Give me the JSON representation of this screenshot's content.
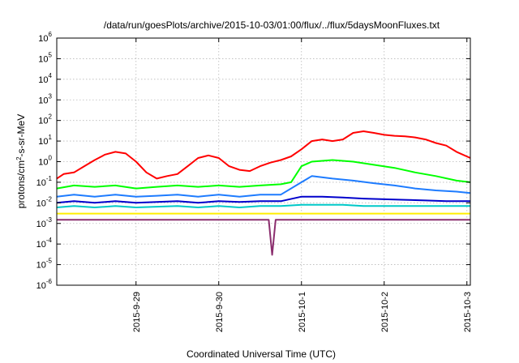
{
  "chart_data": {
    "type": "line",
    "title": "/data/run/goesPlots/archive/2015-10-03/01:00/flux/../flux/5daysMoonFluxes.txt",
    "xlabel": "Coordinated Universal Time (UTC)",
    "ylabel": "protons/cm2-s-sr-MeV",
    "ylabel_parts": {
      "pre": "protons/cm",
      "sup": "2",
      "post": "-s-sr-MeV"
    },
    "y_scale": "log",
    "ylim": [
      1e-06,
      1000000.0
    ],
    "y_ticks": [
      {
        "value": 1e-06,
        "base": "10",
        "exp": "-6"
      },
      {
        "value": 1e-05,
        "base": "10",
        "exp": "-5"
      },
      {
        "value": 0.0001,
        "base": "10",
        "exp": "-4"
      },
      {
        "value": 0.001,
        "base": "10",
        "exp": "-3"
      },
      {
        "value": 0.01,
        "base": "10",
        "exp": "-2"
      },
      {
        "value": 0.1,
        "base": "10",
        "exp": "-1"
      },
      {
        "value": 1,
        "base": "10",
        "exp": "0"
      },
      {
        "value": 10.0,
        "base": "10",
        "exp": "1"
      },
      {
        "value": 100.0,
        "base": "10",
        "exp": "2"
      },
      {
        "value": 1000.0,
        "base": "10",
        "exp": "3"
      },
      {
        "value": 10000.0,
        "base": "10",
        "exp": "4"
      },
      {
        "value": 100000.0,
        "base": "10",
        "exp": "5"
      },
      {
        "value": 1000000.0,
        "base": "10",
        "exp": "6"
      }
    ],
    "x_range": [
      "2015-09-28T01:00",
      "2015-10-03T01:00"
    ],
    "x_ticks": [
      {
        "value": "2015-09-29T00:00",
        "label": "2015-9-29"
      },
      {
        "value": "2015-09-30T00:00",
        "label": "2015-9-30"
      },
      {
        "value": "2015-10-01T00:00",
        "label": "2015-10-1"
      },
      {
        "value": "2015-10-02T00:00",
        "label": "2015-10-2"
      },
      {
        "value": "2015-10-03T00:00",
        "label": "2015-10-3"
      }
    ],
    "grid": true,
    "series": [
      {
        "color": "#ff0000",
        "points": [
          [
            "2015-09-28T01:00",
            0.15
          ],
          [
            "2015-09-28T03:00",
            0.25
          ],
          [
            "2015-09-28T06:00",
            0.3
          ],
          [
            "2015-09-28T09:00",
            0.6
          ],
          [
            "2015-09-28T12:00",
            1.2
          ],
          [
            "2015-09-28T15:00",
            2.2
          ],
          [
            "2015-09-28T18:00",
            3.0
          ],
          [
            "2015-09-28T21:00",
            2.5
          ],
          [
            "2015-09-29T00:00",
            1.0
          ],
          [
            "2015-09-29T03:00",
            0.3
          ],
          [
            "2015-09-29T06:00",
            0.15
          ],
          [
            "2015-09-29T09:00",
            0.2
          ],
          [
            "2015-09-29T12:00",
            0.25
          ],
          [
            "2015-09-29T15:00",
            0.6
          ],
          [
            "2015-09-29T18:00",
            1.5
          ],
          [
            "2015-09-29T21:00",
            2.0
          ],
          [
            "2015-09-30T00:00",
            1.5
          ],
          [
            "2015-09-30T03:00",
            0.6
          ],
          [
            "2015-09-30T06:00",
            0.4
          ],
          [
            "2015-09-30T09:00",
            0.35
          ],
          [
            "2015-09-30T12:00",
            0.6
          ],
          [
            "2015-09-30T15:00",
            0.9
          ],
          [
            "2015-09-30T18:00",
            1.2
          ],
          [
            "2015-09-30T21:00",
            1.8
          ],
          [
            "2015-10-01T00:00",
            4.0
          ],
          [
            "2015-10-01T03:00",
            10
          ],
          [
            "2015-10-01T06:00",
            12
          ],
          [
            "2015-10-01T09:00",
            10
          ],
          [
            "2015-10-01T12:00",
            12
          ],
          [
            "2015-10-01T15:00",
            25
          ],
          [
            "2015-10-01T18:00",
            30
          ],
          [
            "2015-10-01T21:00",
            25
          ],
          [
            "2015-10-02T00:00",
            20
          ],
          [
            "2015-10-02T03:00",
            18
          ],
          [
            "2015-10-02T06:00",
            17
          ],
          [
            "2015-10-02T09:00",
            15
          ],
          [
            "2015-10-02T12:00",
            12
          ],
          [
            "2015-10-02T15:00",
            8
          ],
          [
            "2015-10-02T18:00",
            6
          ],
          [
            "2015-10-02T21:00",
            3
          ],
          [
            "2015-10-03T01:00",
            1.5
          ]
        ]
      },
      {
        "color": "#00ff00",
        "points": [
          [
            "2015-09-28T01:00",
            0.05
          ],
          [
            "2015-09-28T06:00",
            0.07
          ],
          [
            "2015-09-28T12:00",
            0.06
          ],
          [
            "2015-09-28T18:00",
            0.07
          ],
          [
            "2015-09-29T00:00",
            0.05
          ],
          [
            "2015-09-29T06:00",
            0.06
          ],
          [
            "2015-09-29T12:00",
            0.07
          ],
          [
            "2015-09-29T18:00",
            0.06
          ],
          [
            "2015-09-30T00:00",
            0.07
          ],
          [
            "2015-09-30T06:00",
            0.06
          ],
          [
            "2015-09-30T12:00",
            0.07
          ],
          [
            "2015-09-30T18:00",
            0.08
          ],
          [
            "2015-09-30T21:00",
            0.1
          ],
          [
            "2015-10-01T00:00",
            0.6
          ],
          [
            "2015-10-01T03:00",
            1.0
          ],
          [
            "2015-10-01T09:00",
            1.2
          ],
          [
            "2015-10-01T15:00",
            1.0
          ],
          [
            "2015-10-01T21:00",
            0.7
          ],
          [
            "2015-10-02T03:00",
            0.5
          ],
          [
            "2015-10-02T09:00",
            0.3
          ],
          [
            "2015-10-02T15:00",
            0.2
          ],
          [
            "2015-10-02T21:00",
            0.12
          ],
          [
            "2015-10-03T01:00",
            0.1
          ]
        ]
      },
      {
        "color": "#1e7cff",
        "points": [
          [
            "2015-09-28T01:00",
            0.02
          ],
          [
            "2015-09-28T06:00",
            0.025
          ],
          [
            "2015-09-28T12:00",
            0.02
          ],
          [
            "2015-09-28T18:00",
            0.025
          ],
          [
            "2015-09-29T00:00",
            0.02
          ],
          [
            "2015-09-29T06:00",
            0.022
          ],
          [
            "2015-09-29T12:00",
            0.025
          ],
          [
            "2015-09-29T18:00",
            0.02
          ],
          [
            "2015-09-30T00:00",
            0.025
          ],
          [
            "2015-09-30T06:00",
            0.02
          ],
          [
            "2015-09-30T12:00",
            0.025
          ],
          [
            "2015-09-30T18:00",
            0.025
          ],
          [
            "2015-10-01T00:00",
            0.1
          ],
          [
            "2015-10-01T03:00",
            0.2
          ],
          [
            "2015-10-01T09:00",
            0.15
          ],
          [
            "2015-10-01T15:00",
            0.12
          ],
          [
            "2015-10-01T21:00",
            0.09
          ],
          [
            "2015-10-02T03:00",
            0.07
          ],
          [
            "2015-10-02T09:00",
            0.05
          ],
          [
            "2015-10-02T15:00",
            0.04
          ],
          [
            "2015-10-02T21:00",
            0.035
          ],
          [
            "2015-10-03T01:00",
            0.03
          ]
        ]
      },
      {
        "color": "#0000cc",
        "points": [
          [
            "2015-09-28T01:00",
            0.01
          ],
          [
            "2015-09-28T06:00",
            0.012
          ],
          [
            "2015-09-28T12:00",
            0.01
          ],
          [
            "2015-09-28T18:00",
            0.012
          ],
          [
            "2015-09-29T00:00",
            0.01
          ],
          [
            "2015-09-29T06:00",
            0.011
          ],
          [
            "2015-09-29T12:00",
            0.012
          ],
          [
            "2015-09-29T18:00",
            0.01
          ],
          [
            "2015-09-30T00:00",
            0.012
          ],
          [
            "2015-09-30T06:00",
            0.011
          ],
          [
            "2015-09-30T12:00",
            0.012
          ],
          [
            "2015-09-30T18:00",
            0.012
          ],
          [
            "2015-10-01T00:00",
            0.02
          ],
          [
            "2015-10-01T06:00",
            0.02
          ],
          [
            "2015-10-01T12:00",
            0.018
          ],
          [
            "2015-10-01T18:00",
            0.016
          ],
          [
            "2015-10-02T00:00",
            0.015
          ],
          [
            "2015-10-02T06:00",
            0.014
          ],
          [
            "2015-10-02T12:00",
            0.013
          ],
          [
            "2015-10-02T18:00",
            0.012
          ],
          [
            "2015-10-03T01:00",
            0.012
          ]
        ]
      },
      {
        "color": "#00c8c8",
        "points": [
          [
            "2015-09-28T01:00",
            0.006
          ],
          [
            "2015-09-28T06:00",
            0.007
          ],
          [
            "2015-09-28T12:00",
            0.006
          ],
          [
            "2015-09-28T18:00",
            0.007
          ],
          [
            "2015-09-29T00:00",
            0.006
          ],
          [
            "2015-09-29T06:00",
            0.0065
          ],
          [
            "2015-09-29T12:00",
            0.007
          ],
          [
            "2015-09-29T18:00",
            0.006
          ],
          [
            "2015-09-30T00:00",
            0.007
          ],
          [
            "2015-09-30T06:00",
            0.006
          ],
          [
            "2015-09-30T12:00",
            0.007
          ],
          [
            "2015-09-30T18:00",
            0.007
          ],
          [
            "2015-10-01T00:00",
            0.008
          ],
          [
            "2015-10-01T06:00",
            0.008
          ],
          [
            "2015-10-01T12:00",
            0.008
          ],
          [
            "2015-10-01T18:00",
            0.007
          ],
          [
            "2015-10-02T00:00",
            0.007
          ],
          [
            "2015-10-02T06:00",
            0.007
          ],
          [
            "2015-10-02T12:00",
            0.007
          ],
          [
            "2015-10-02T18:00",
            0.007
          ],
          [
            "2015-10-03T01:00",
            0.007
          ]
        ]
      },
      {
        "color": "#ffee00",
        "points": [
          [
            "2015-09-28T01:00",
            0.003
          ],
          [
            "2015-09-28T12:00",
            0.003
          ],
          [
            "2015-09-29T00:00",
            0.003
          ],
          [
            "2015-09-29T12:00",
            0.003
          ],
          [
            "2015-09-30T00:00",
            0.003
          ],
          [
            "2015-09-30T12:00",
            0.003
          ],
          [
            "2015-10-01T00:00",
            0.003
          ],
          [
            "2015-10-01T12:00",
            0.003
          ],
          [
            "2015-10-02T00:00",
            0.003
          ],
          [
            "2015-10-02T12:00",
            0.003
          ],
          [
            "2015-10-03T01:00",
            0.003
          ]
        ]
      },
      {
        "color": "#8b2e6e",
        "points": [
          [
            "2015-09-28T01:00",
            0.0015
          ],
          [
            "2015-09-28T12:00",
            0.0015
          ],
          [
            "2015-09-29T00:00",
            0.0015
          ],
          [
            "2015-09-29T12:00",
            0.0015
          ],
          [
            "2015-09-30T00:00",
            0.0015
          ],
          [
            "2015-09-30T12:00",
            0.0015
          ],
          [
            "2015-09-30T14:30",
            0.0015
          ],
          [
            "2015-09-30T15:30",
            3e-05
          ],
          [
            "2015-09-30T16:30",
            0.0015
          ],
          [
            "2015-10-01T00:00",
            0.0015
          ],
          [
            "2015-10-01T12:00",
            0.0015
          ],
          [
            "2015-10-02T00:00",
            0.0015
          ],
          [
            "2015-10-02T12:00",
            0.0015
          ],
          [
            "2015-10-03T01:00",
            0.0015
          ]
        ]
      }
    ]
  },
  "colors": {
    "background": "#ffffff",
    "grid": "#b8b8b8",
    "frame": "#000000"
  }
}
